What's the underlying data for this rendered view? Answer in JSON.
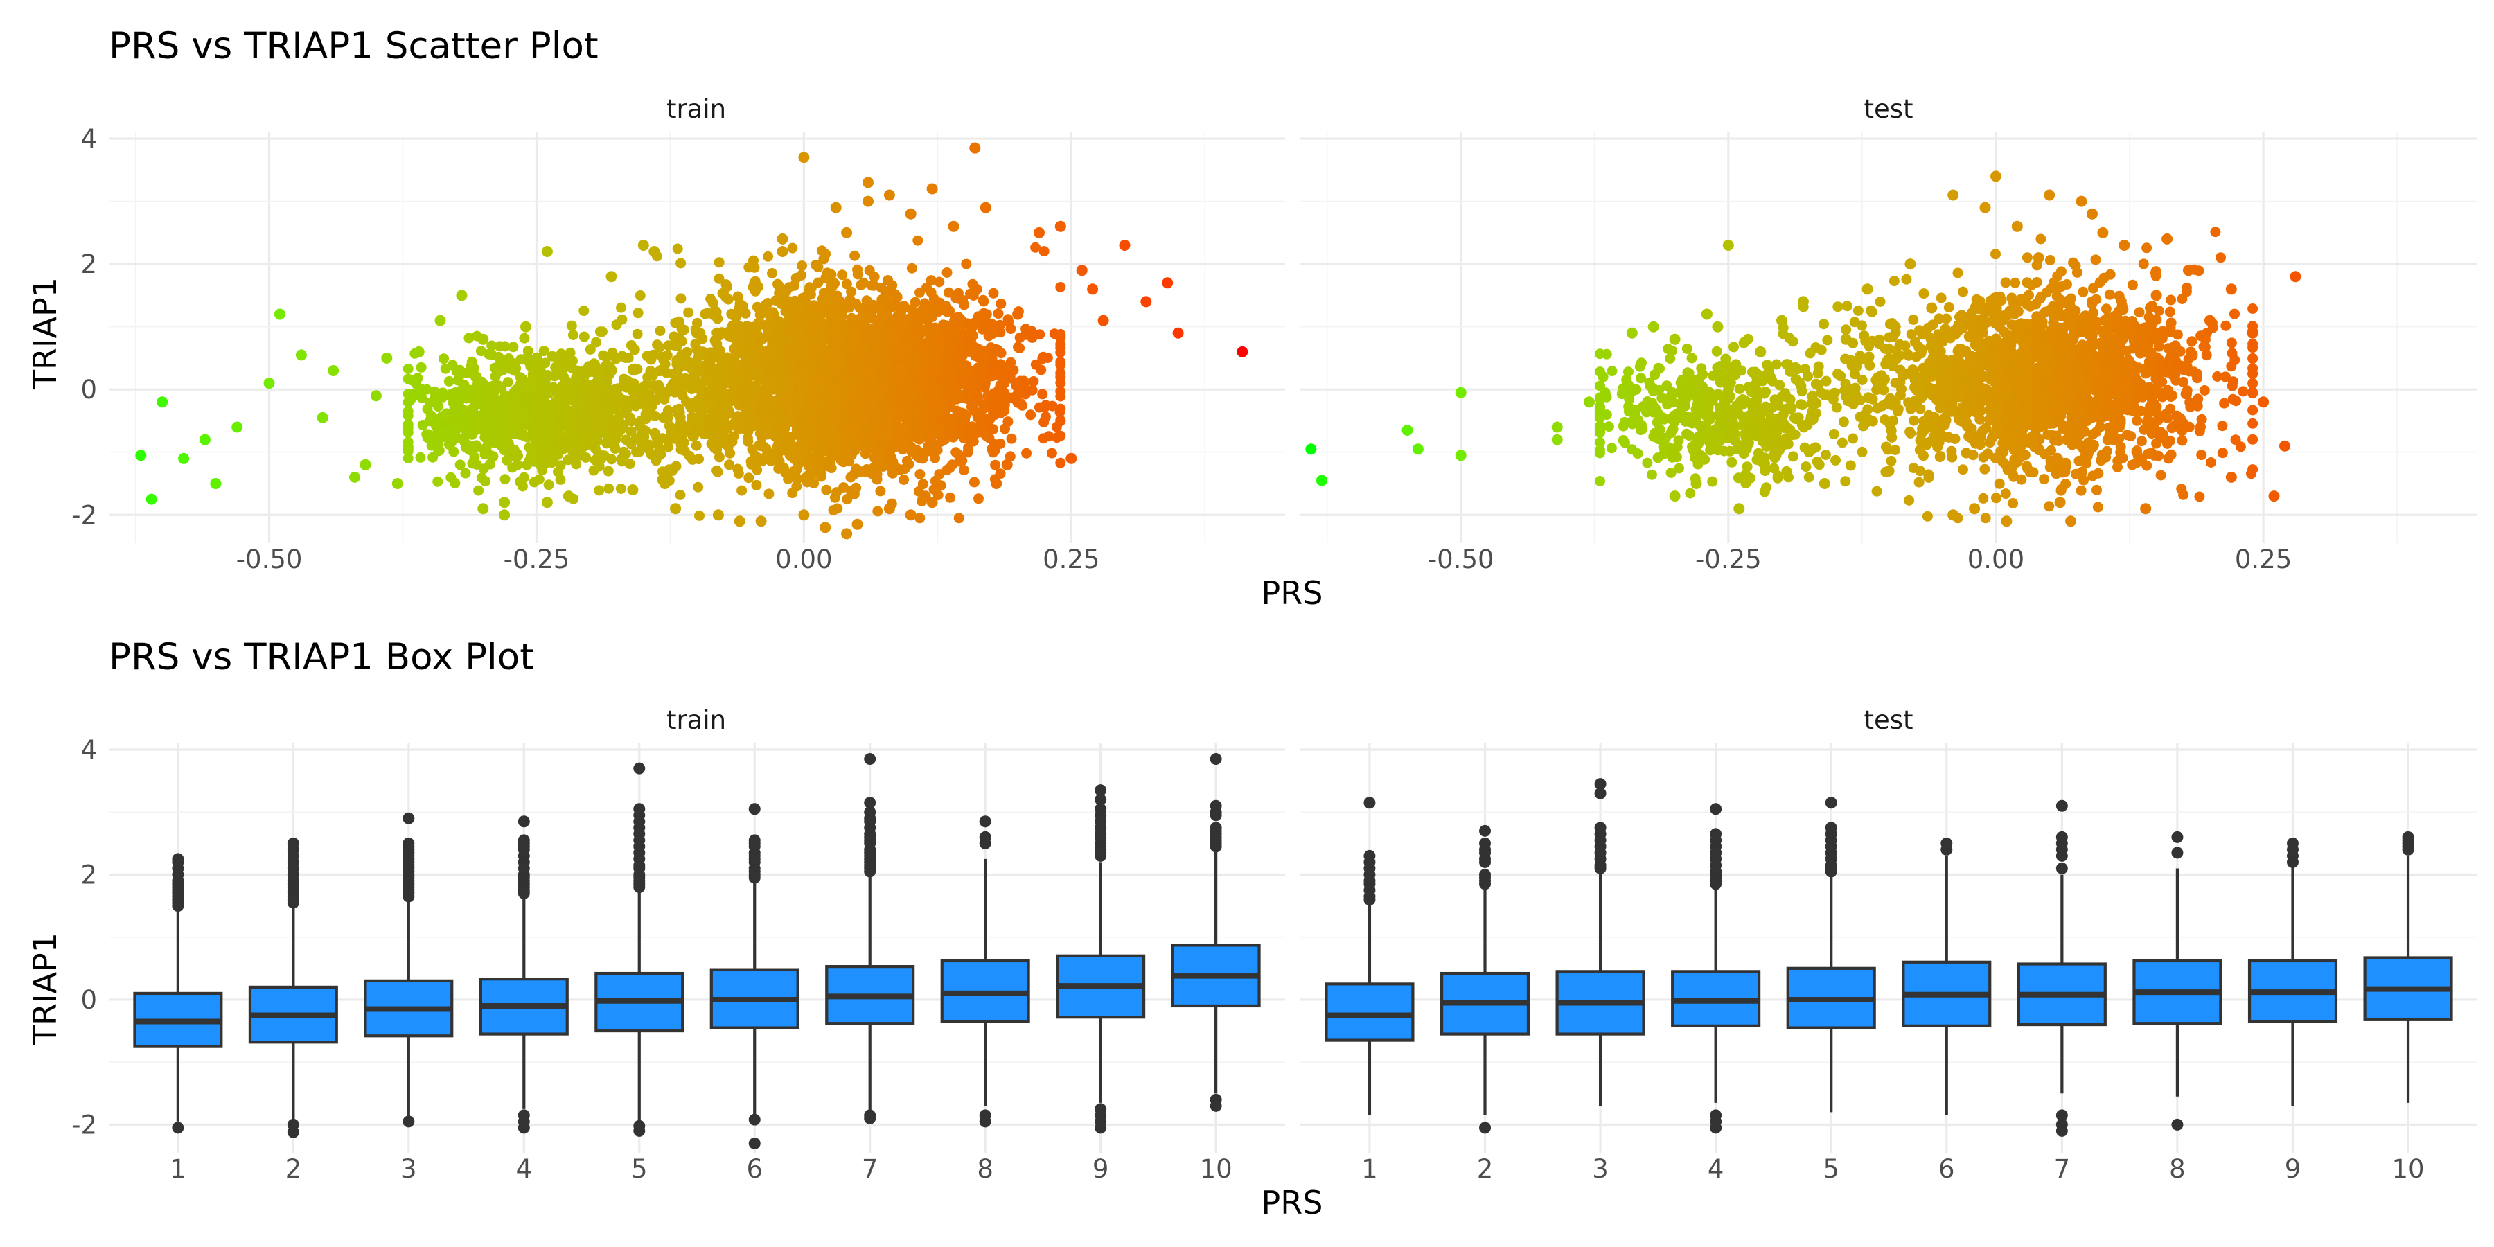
{
  "chart_data": [
    {
      "type": "scatter",
      "title": "PRS vs TRIAP1 Scatter Plot",
      "xlabel": "PRS",
      "ylabel": "TRIAP1",
      "facets": [
        "train",
        "test"
      ],
      "xlim": [
        -0.65,
        0.45
      ],
      "ylim": [
        -2.45,
        4.1
      ],
      "x_ticks": [
        "-0.50",
        "-0.25",
        "0.00",
        "0.25"
      ],
      "x_tick_values": [
        -0.5,
        -0.25,
        0.0,
        0.25
      ],
      "y_ticks": [
        "-2",
        "0",
        "2",
        "4"
      ],
      "y_tick_values": [
        -2,
        0,
        2,
        4
      ],
      "color_scale": {
        "low": "#00ff00",
        "high": "#ff0000",
        "mapped_to": "PRS"
      },
      "grid": true,
      "legend": "none",
      "series": [
        {
          "facet": "train",
          "points_note": "dense cloud",
          "x": [
            -0.62,
            -0.61,
            -0.6,
            -0.58,
            -0.56,
            -0.55,
            -0.53,
            -0.5,
            -0.49,
            -0.47,
            -0.45,
            -0.44,
            -0.42,
            -0.41,
            -0.4,
            -0.39,
            -0.38,
            -0.36,
            -0.34,
            -0.32,
            -0.3,
            -0.28,
            -0.26,
            -0.24,
            -0.22,
            -0.2,
            -0.18,
            -0.16,
            -0.14,
            -0.12,
            -0.1,
            -0.08,
            -0.06,
            -0.04,
            -0.02,
            0.0,
            0.02,
            0.04,
            0.06,
            0.08,
            0.1,
            0.12,
            0.14,
            0.16,
            0.18,
            0.2,
            0.22,
            0.24,
            0.26,
            0.28,
            0.3,
            0.32,
            0.34,
            0.35,
            0.41,
            0.03,
            0.06,
            0.16,
            0.17,
            0.05,
            0.1,
            0.25,
            0.27,
            -0.24,
            -0.15,
            -0.13,
            -0.3,
            -0.28,
            0.04,
            0.0,
            -0.02,
            0.12,
            0.19,
            -0.06,
            0.08
          ],
          "y": [
            -1.05,
            -1.75,
            -0.2,
            -1.1,
            -0.8,
            -1.5,
            -0.6,
            0.1,
            1.2,
            0.55,
            -0.45,
            0.3,
            -1.4,
            -1.2,
            -0.1,
            0.5,
            -1.5,
            0.6,
            1.1,
            1.5,
            -1.9,
            -2.0,
            1.0,
            2.2,
            -1.7,
            0.3,
            1.8,
            -1.6,
            2.2,
            -1.9,
            0.9,
            -2.0,
            1.3,
            -2.1,
            2.2,
            3.7,
            -2.2,
            -2.3,
            3.3,
            -1.9,
            2.8,
            3.2,
            2.6,
            3.85,
            -1.5,
            1.2,
            2.5,
            2.6,
            1.9,
            1.1,
            2.3,
            1.4,
            1.7,
            0.9,
            0.6,
            2.9,
            3.0,
            3.85,
            2.9,
            -2.15,
            -2.0,
            -1.1,
            1.6,
            -1.8,
            2.3,
            -1.5,
            0.8,
            -1.8,
            2.5,
            -2.0,
            2.4,
            -1.8,
            -1.2,
            -2.1,
            3.1
          ]
        },
        {
          "facet": "test",
          "points_note": "dense cloud",
          "x": [
            -0.64,
            -0.63,
            -0.55,
            -0.54,
            -0.5,
            -0.5,
            -0.41,
            -0.41,
            -0.38,
            -0.34,
            -0.32,
            -0.3,
            -0.28,
            -0.26,
            -0.25,
            -0.24,
            -0.22,
            -0.2,
            -0.18,
            -0.16,
            -0.14,
            -0.12,
            -0.1,
            -0.08,
            -0.06,
            -0.04,
            -0.02,
            0.0,
            0.02,
            0.04,
            0.06,
            0.08,
            0.1,
            0.12,
            0.14,
            0.16,
            0.18,
            0.2,
            0.22,
            0.24,
            0.26,
            0.27,
            0.28,
            -0.04,
            0.01,
            0.07,
            0.09,
            -0.01,
            0.05,
            0.15,
            0.22,
            0.25,
            -0.27,
            -0.3
          ],
          "y": [
            -0.95,
            -1.45,
            -0.65,
            -0.95,
            -0.05,
            -1.05,
            -0.6,
            -0.8,
            -0.2,
            0.9,
            1.0,
            -1.7,
            -1.5,
            1.0,
            2.3,
            -1.9,
            0.6,
            1.1,
            1.4,
            -1.5,
            0.8,
            1.6,
            -1.3,
            2.0,
            1.3,
            3.1,
            -1.9,
            3.4,
            2.6,
            2.1,
            -1.8,
            3.0,
            2.5,
            2.3,
            -1.9,
            2.4,
            1.9,
            1.1,
            -1.4,
            0.9,
            -1.7,
            -0.9,
            1.8,
            -2.0,
            -2.1,
            -2.1,
            2.8,
            2.9,
            3.1,
            1.5,
            1.6,
            -0.2,
            1.2,
            0.8
          ]
        }
      ]
    },
    {
      "type": "box",
      "title": "PRS vs TRIAP1 Box Plot",
      "xlabel": "PRS",
      "ylabel": "TRIAP1",
      "facets": [
        "train",
        "test"
      ],
      "categories": [
        "1",
        "2",
        "3",
        "4",
        "5",
        "6",
        "7",
        "8",
        "9",
        "10"
      ],
      "ylim": [
        -2.45,
        4.1
      ],
      "y_ticks": [
        "-2",
        "0",
        "2",
        "4"
      ],
      "y_tick_values": [
        -2,
        0,
        2,
        4
      ],
      "fill": "#1e90ff",
      "grid": true,
      "legend": "none",
      "series": [
        {
          "facet": "train",
          "boxes": [
            {
              "q1": -0.75,
              "median": -0.35,
              "q3": 0.1,
              "lo": -1.95,
              "hi": 1.4,
              "outliers": [
                2.25,
                2.2,
                2.1,
                2.0,
                1.9,
                1.85,
                1.8,
                1.75,
                1.7,
                1.65,
                1.6,
                1.55,
                1.5,
                -2.05
              ]
            },
            {
              "q1": -0.68,
              "median": -0.25,
              "q3": 0.2,
              "lo": -1.95,
              "hi": 1.5,
              "outliers": [
                2.5,
                2.4,
                2.3,
                2.2,
                2.1,
                2.0,
                1.9,
                1.85,
                1.8,
                1.75,
                1.7,
                1.65,
                1.6,
                1.55,
                -2.0,
                -2.12
              ]
            },
            {
              "q1": -0.58,
              "median": -0.15,
              "q3": 0.3,
              "lo": -1.9,
              "hi": 1.6,
              "outliers": [
                2.9,
                2.5,
                2.45,
                2.4,
                2.35,
                2.3,
                2.25,
                2.2,
                2.15,
                2.1,
                2.05,
                2.0,
                1.95,
                1.9,
                1.85,
                1.8,
                1.75,
                1.7,
                1.65,
                -1.95
              ]
            },
            {
              "q1": -0.55,
              "median": -0.1,
              "q3": 0.33,
              "lo": -1.75,
              "hi": 1.65,
              "outliers": [
                2.85,
                2.55,
                2.5,
                2.45,
                2.4,
                2.3,
                2.2,
                2.1,
                2.0,
                1.95,
                1.9,
                1.85,
                1.8,
                1.75,
                1.7,
                -1.85,
                -1.95,
                -2.05
              ]
            },
            {
              "q1": -0.5,
              "median": -0.02,
              "q3": 0.42,
              "lo": -1.95,
              "hi": 1.75,
              "outliers": [
                3.7,
                3.05,
                2.95,
                2.85,
                2.75,
                2.65,
                2.55,
                2.45,
                2.35,
                2.25,
                2.15,
                2.1,
                2.0,
                1.95,
                1.9,
                1.85,
                1.8,
                -2.02,
                -2.1
              ]
            },
            {
              "q1": -0.45,
              "median": 0.0,
              "q3": 0.48,
              "lo": -1.85,
              "hi": 1.9,
              "outliers": [
                3.05,
                2.55,
                2.5,
                2.45,
                2.35,
                2.3,
                2.25,
                2.2,
                2.1,
                2.05,
                2.0,
                1.95,
                -1.92,
                -2.3
              ]
            },
            {
              "q1": -0.38,
              "median": 0.05,
              "q3": 0.53,
              "lo": -1.8,
              "hi": 2.0,
              "outliers": [
                3.85,
                3.15,
                3.0,
                2.9,
                2.85,
                2.75,
                2.65,
                2.6,
                2.55,
                2.5,
                2.4,
                2.35,
                2.3,
                2.25,
                2.2,
                2.15,
                2.1,
                2.05,
                -1.85,
                -1.9
              ]
            },
            {
              "q1": -0.35,
              "median": 0.1,
              "q3": 0.62,
              "lo": -1.7,
              "hi": 2.25,
              "outliers": [
                2.85,
                2.6,
                2.5,
                -1.85,
                -1.95
              ]
            },
            {
              "q1": -0.28,
              "median": 0.22,
              "q3": 0.7,
              "lo": -1.65,
              "hi": 2.2,
              "outliers": [
                3.35,
                3.2,
                3.05,
                2.95,
                2.85,
                2.75,
                2.65,
                2.6,
                2.5,
                2.45,
                2.4,
                2.35,
                2.3,
                -1.75,
                -1.85,
                -1.95,
                -2.05
              ]
            },
            {
              "q1": -0.1,
              "median": 0.38,
              "q3": 0.87,
              "lo": -1.5,
              "hi": 2.4,
              "outliers": [
                3.85,
                3.1,
                3.0,
                2.95,
                2.75,
                2.7,
                2.65,
                2.6,
                2.55,
                2.5,
                2.45,
                -1.6,
                -1.7
              ]
            }
          ]
        },
        {
          "facet": "test",
          "boxes": [
            {
              "q1": -0.65,
              "median": -0.25,
              "q3": 0.25,
              "lo": -1.85,
              "hi": 1.55,
              "outliers": [
                3.15,
                2.3,
                2.2,
                2.1,
                2.0,
                1.9,
                1.85,
                1.75,
                1.65,
                1.6
              ]
            },
            {
              "q1": -0.55,
              "median": -0.05,
              "q3": 0.42,
              "lo": -1.85,
              "hi": 1.8,
              "outliers": [
                2.7,
                2.5,
                2.4,
                2.35,
                2.25,
                2.2,
                2.0,
                1.95,
                1.9,
                1.85,
                -2.05
              ]
            },
            {
              "q1": -0.55,
              "median": -0.05,
              "q3": 0.45,
              "lo": -1.7,
              "hi": 2.05,
              "outliers": [
                3.45,
                3.3,
                2.75,
                2.65,
                2.55,
                2.45,
                2.35,
                2.25,
                2.15,
                2.1
              ]
            },
            {
              "q1": -0.42,
              "median": -0.02,
              "q3": 0.45,
              "lo": -1.65,
              "hi": 1.8,
              "outliers": [
                3.05,
                2.65,
                2.55,
                2.45,
                2.35,
                2.25,
                2.15,
                2.05,
                2.0,
                1.95,
                1.9,
                1.85,
                -1.85,
                -1.95,
                -2.05
              ]
            },
            {
              "q1": -0.45,
              "median": 0.0,
              "q3": 0.5,
              "lo": -1.8,
              "hi": 2.0,
              "outliers": [
                3.15,
                2.75,
                2.65,
                2.55,
                2.45,
                2.35,
                2.25,
                2.15,
                2.1,
                2.05
              ]
            },
            {
              "q1": -0.42,
              "median": 0.08,
              "q3": 0.6,
              "lo": -1.85,
              "hi": 2.3,
              "outliers": [
                2.5,
                2.4
              ]
            },
            {
              "q1": -0.4,
              "median": 0.08,
              "q3": 0.57,
              "lo": -1.5,
              "hi": 2.0,
              "outliers": [
                3.1,
                2.6,
                2.5,
                2.4,
                2.3,
                2.1,
                -1.85,
                -2.0,
                -2.1
              ]
            },
            {
              "q1": -0.38,
              "median": 0.12,
              "q3": 0.62,
              "lo": -1.55,
              "hi": 2.1,
              "outliers": [
                2.6,
                2.35,
                -2.0
              ]
            },
            {
              "q1": -0.35,
              "median": 0.12,
              "q3": 0.62,
              "lo": -1.7,
              "hi": 2.15,
              "outliers": [
                2.5,
                2.4,
                2.3,
                2.2
              ]
            },
            {
              "q1": -0.32,
              "median": 0.17,
              "q3": 0.67,
              "lo": -1.65,
              "hi": 2.3,
              "outliers": [
                2.6,
                2.55,
                2.5,
                2.45,
                2.4
              ]
            }
          ]
        }
      ]
    }
  ]
}
